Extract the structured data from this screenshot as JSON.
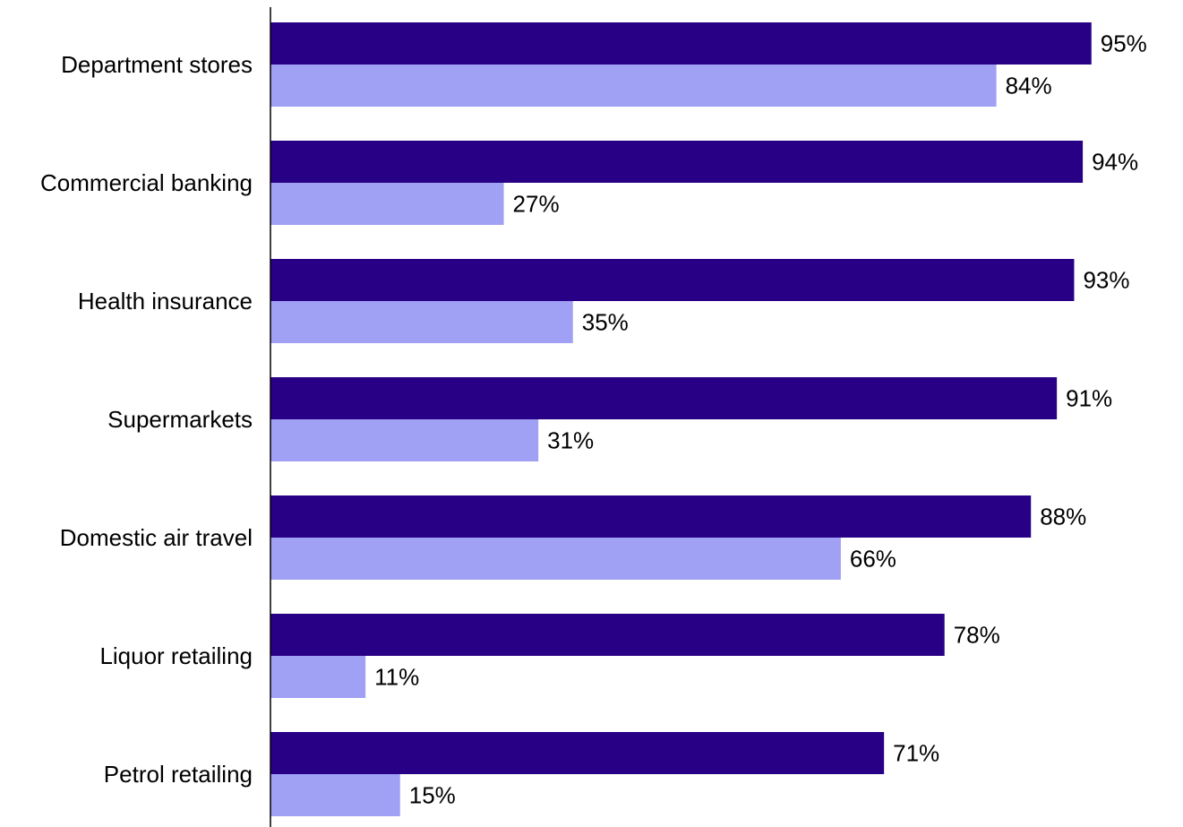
{
  "chart_data": {
    "type": "bar",
    "orientation": "horizontal",
    "categories": [
      "Department stores",
      "Commercial banking",
      "Health insurance",
      "Supermarkets",
      "Domestic air travel",
      "Liquor retailing",
      "Petrol retailing"
    ],
    "series": [
      {
        "values": [
          95,
          94,
          93,
          91,
          88,
          78,
          71
        ],
        "labels": [
          "95%",
          "94%",
          "93%",
          "91%",
          "88%",
          "78%",
          "71%"
        ],
        "color": "#280085"
      },
      {
        "values": [
          84,
          27,
          35,
          31,
          66,
          11,
          15
        ],
        "labels": [
          "84%",
          "27%",
          "35%",
          "31%",
          "66%",
          "11%",
          "15%"
        ],
        "color": "#a0a0f5"
      }
    ],
    "value_unit": "%",
    "xlim": [
      0,
      100
    ],
    "grid": false,
    "legend": "none",
    "title": "",
    "xlabel": "",
    "ylabel": ""
  }
}
